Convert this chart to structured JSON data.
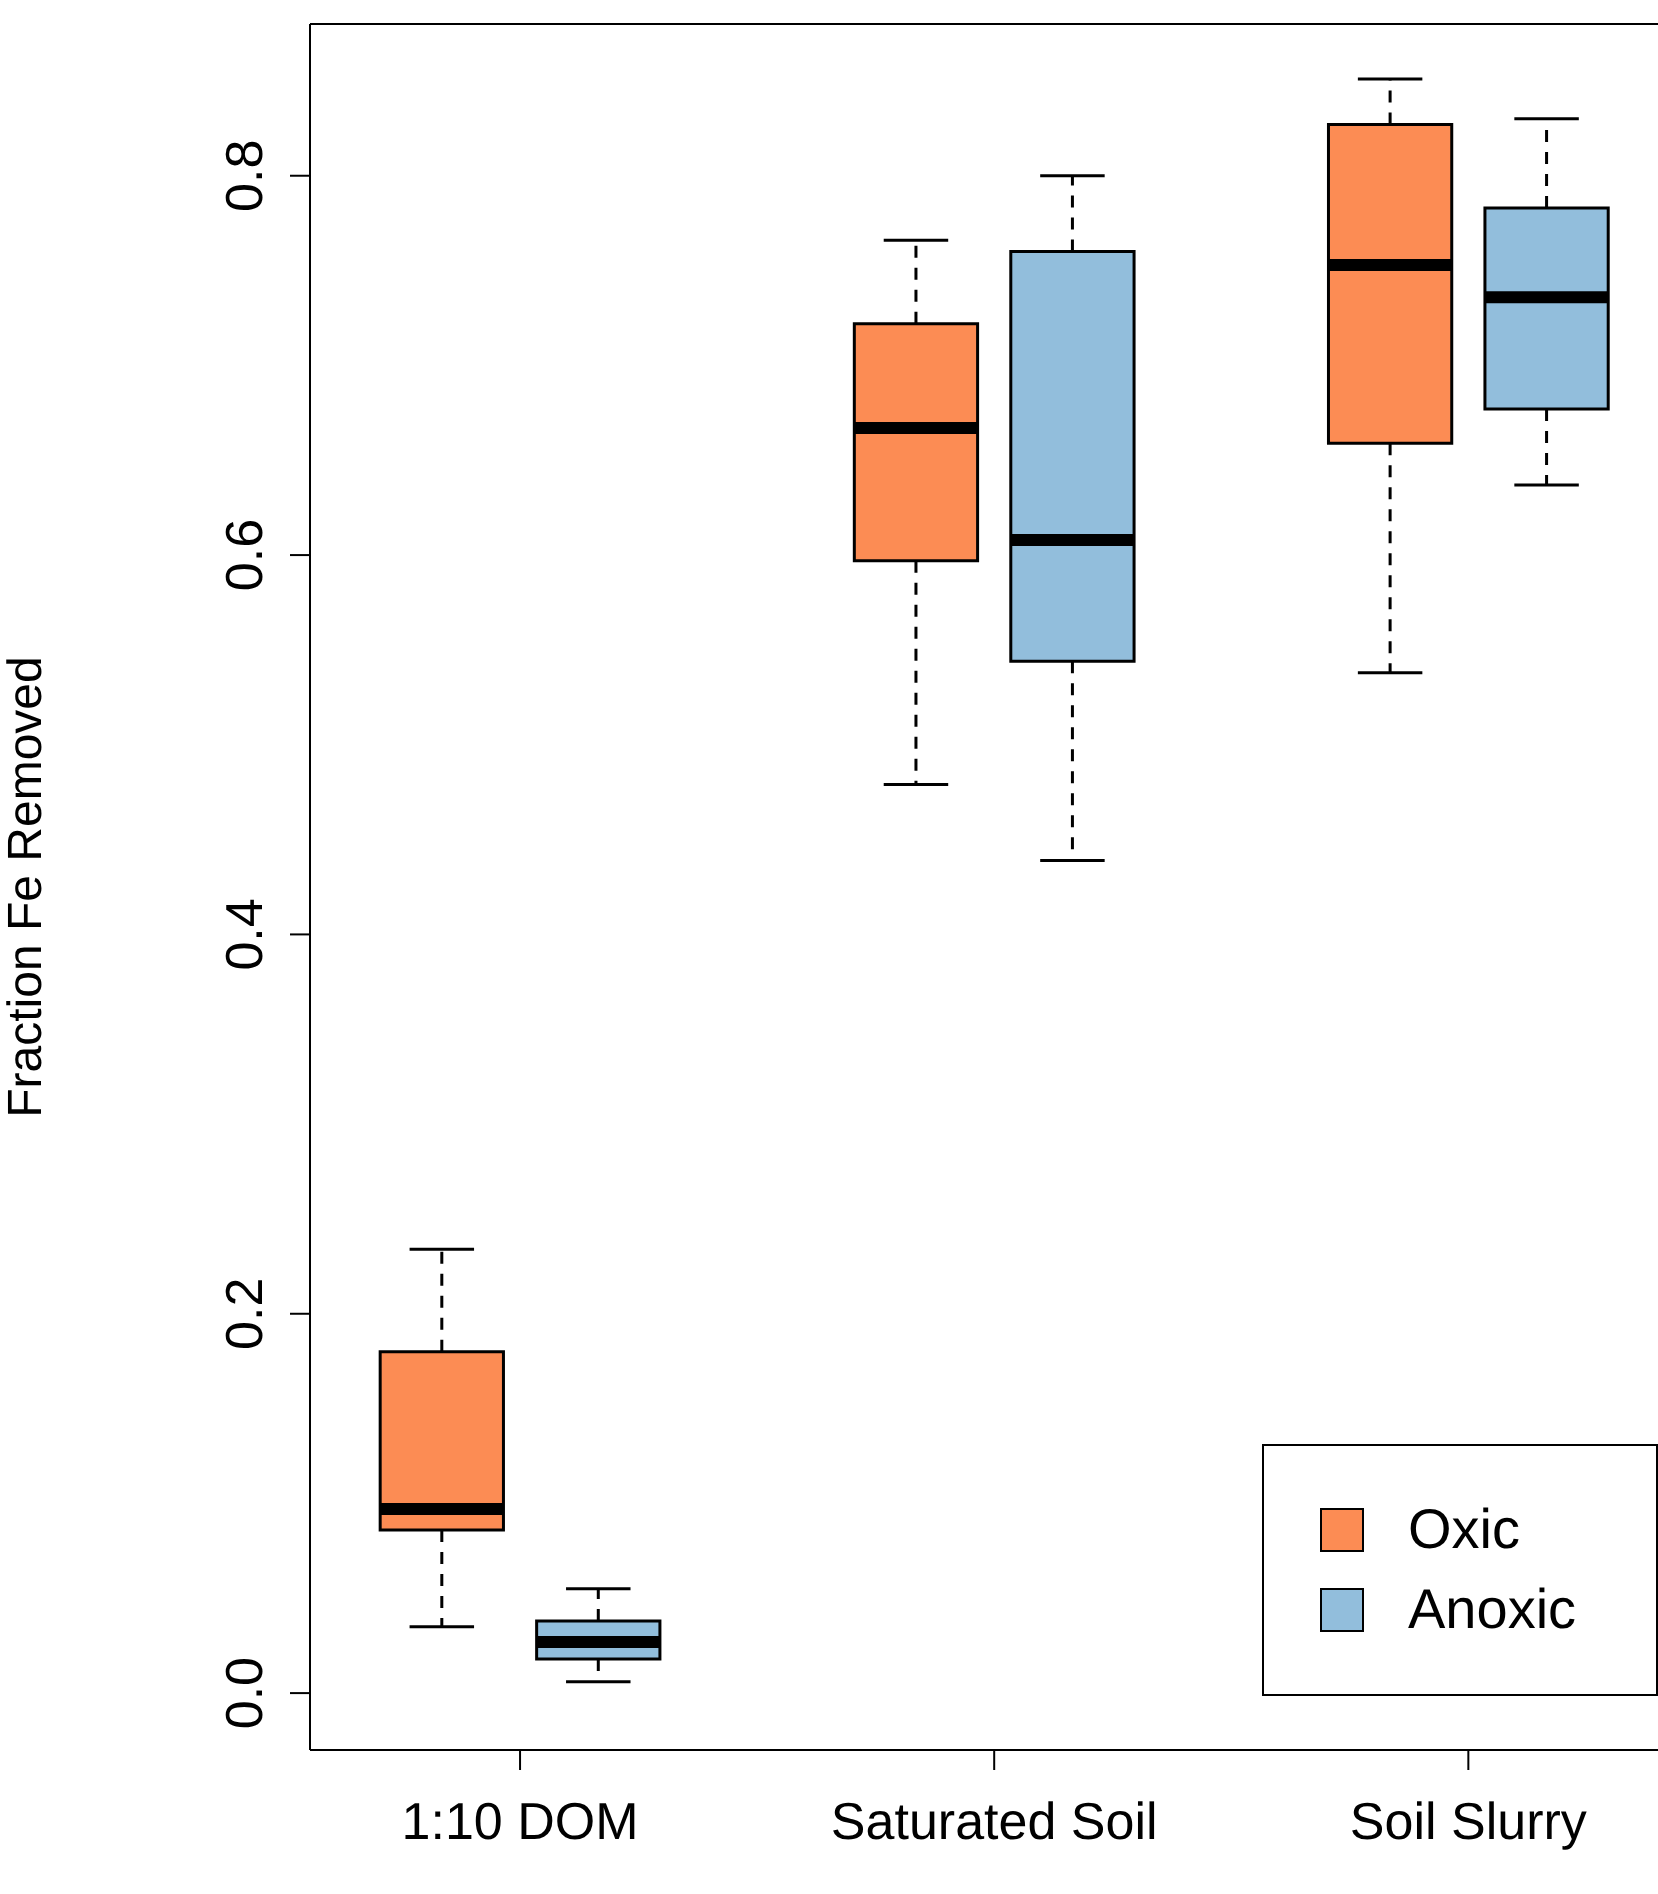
{
  "chart_data": {
    "type": "box",
    "ylabel": "Fraction Fe Removed",
    "categories": [
      "1:10 DOM",
      "Saturated Soil",
      "Soil Slurry"
    ],
    "ylim": [
      -0.03,
      0.88
    ],
    "yticks": [
      {
        "value": 0,
        "label": "0.0"
      },
      {
        "value": 0.2,
        "label": "0.2"
      },
      {
        "value": 0.4,
        "label": "0.4"
      },
      {
        "value": 0.6,
        "label": "0.6"
      },
      {
        "value": 0.8,
        "label": "0.8"
      }
    ],
    "legend": "bottom right",
    "series": [
      {
        "name": "Oxic",
        "color": "#fc8c54",
        "boxes": [
          {
            "low": 0.035,
            "q1": 0.086,
            "median": 0.097,
            "q3": 0.18,
            "high": 0.234
          },
          {
            "low": 0.479,
            "q1": 0.597,
            "median": 0.667,
            "q3": 0.722,
            "high": 0.766
          },
          {
            "low": 0.538,
            "q1": 0.659,
            "median": 0.753,
            "q3": 0.827,
            "high": 0.851
          }
        ]
      },
      {
        "name": "Anoxic",
        "color": "#92bedc",
        "boxes": [
          {
            "low": 0.006,
            "q1": 0.018,
            "median": 0.027,
            "q3": 0.038,
            "high": 0.055
          },
          {
            "low": 0.439,
            "q1": 0.544,
            "median": 0.608,
            "q3": 0.76,
            "high": 0.8
          },
          {
            "low": 0.637,
            "q1": 0.677,
            "median": 0.736,
            "q3": 0.783,
            "high": 0.83
          }
        ]
      }
    ]
  }
}
